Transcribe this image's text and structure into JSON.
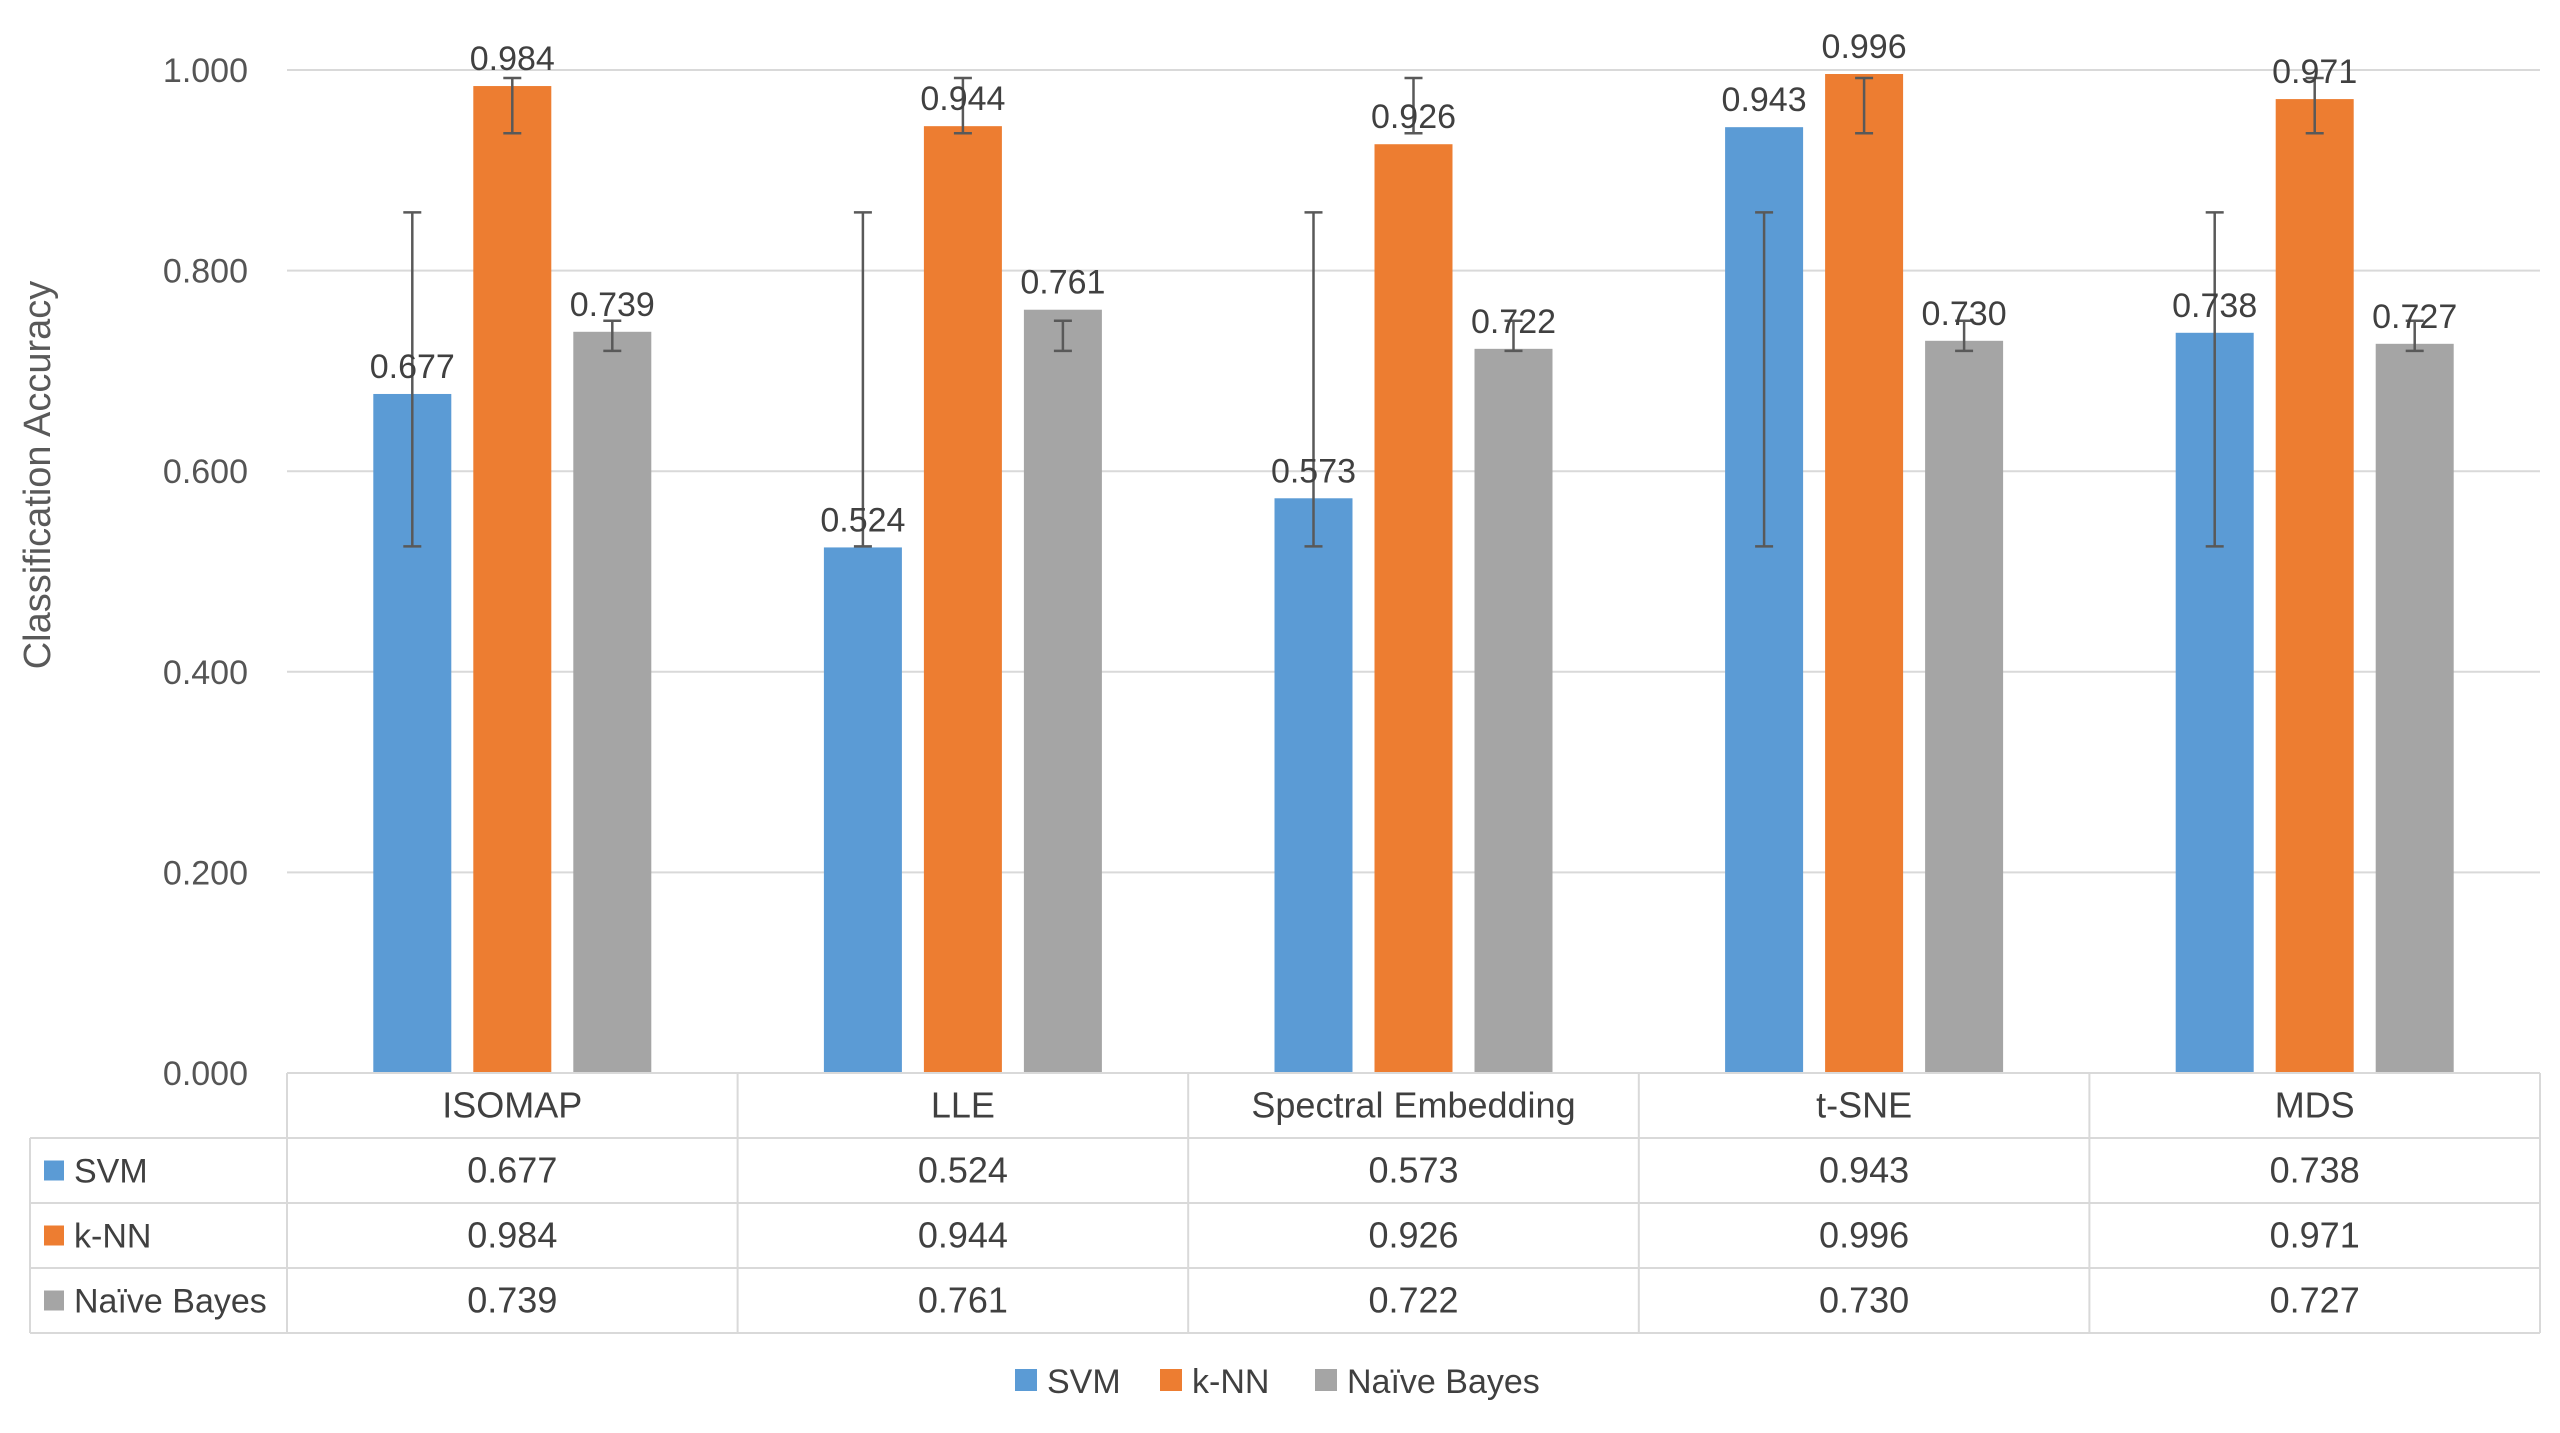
{
  "chart_data": {
    "type": "bar",
    "title": "",
    "xlabel": "",
    "ylabel": "Classification Accuracy",
    "ylim": [
      0,
      1
    ],
    "yticks": [
      "0.000",
      "0.200",
      "0.400",
      "0.600",
      "0.800",
      "1.000"
    ],
    "grid": true,
    "legend_position": "bottom",
    "categories": [
      "ISOMAP",
      "LLE",
      "Spectral Embedding",
      "t-SNE",
      "MDS"
    ],
    "series": [
      {
        "name": "SVM",
        "color": "#5B9BD5",
        "values": [
          0.677,
          0.524,
          0.573,
          0.943,
          0.738
        ],
        "labels": [
          "0.677",
          "0.524",
          "0.573",
          "0.943",
          "0.738"
        ],
        "error_low": [
          0.525,
          0.525,
          0.525,
          0.525,
          0.525
        ],
        "error_high": [
          0.858,
          0.858,
          0.858,
          0.858,
          0.858
        ]
      },
      {
        "name": "k-NN",
        "color": "#ED7D31",
        "values": [
          0.984,
          0.944,
          0.926,
          0.996,
          0.971
        ],
        "labels": [
          "0.984",
          "0.944",
          "0.926",
          "0.996",
          "0.971"
        ],
        "error_low": [
          0.937,
          0.937,
          0.937,
          0.937,
          0.937
        ],
        "error_high": [
          0.992,
          0.992,
          0.992,
          0.992,
          0.992
        ]
      },
      {
        "name": "Naive Bayes",
        "color": "#A5A5A5",
        "values": [
          0.739,
          0.761,
          0.722,
          0.73,
          0.727
        ],
        "labels": [
          "0.739",
          "0.761",
          "0.722",
          "0.730",
          "0.727"
        ],
        "error_low": [
          0.72,
          0.72,
          0.72,
          0.72,
          0.72
        ],
        "error_high": [
          0.75,
          0.75,
          0.75,
          0.75,
          0.75
        ]
      }
    ],
    "data_table": {
      "rows": [
        {
          "series": "SVM",
          "label": "SVM",
          "cells": [
            "0.677",
            "0.524",
            "0.573",
            "0.943",
            "0.738"
          ]
        },
        {
          "series": "k-NN",
          "label": "k-NN",
          "cells": [
            "0.984",
            "0.944",
            "0.926",
            "0.996",
            "0.971"
          ]
        },
        {
          "series": "Naive Bayes",
          "label": "Naïve Bayes",
          "cells": [
            "0.739",
            "0.761",
            "0.722",
            "0.730",
            "0.727"
          ]
        }
      ]
    },
    "legend": [
      "SVM",
      "k-NN",
      "Naïve Bayes"
    ]
  }
}
